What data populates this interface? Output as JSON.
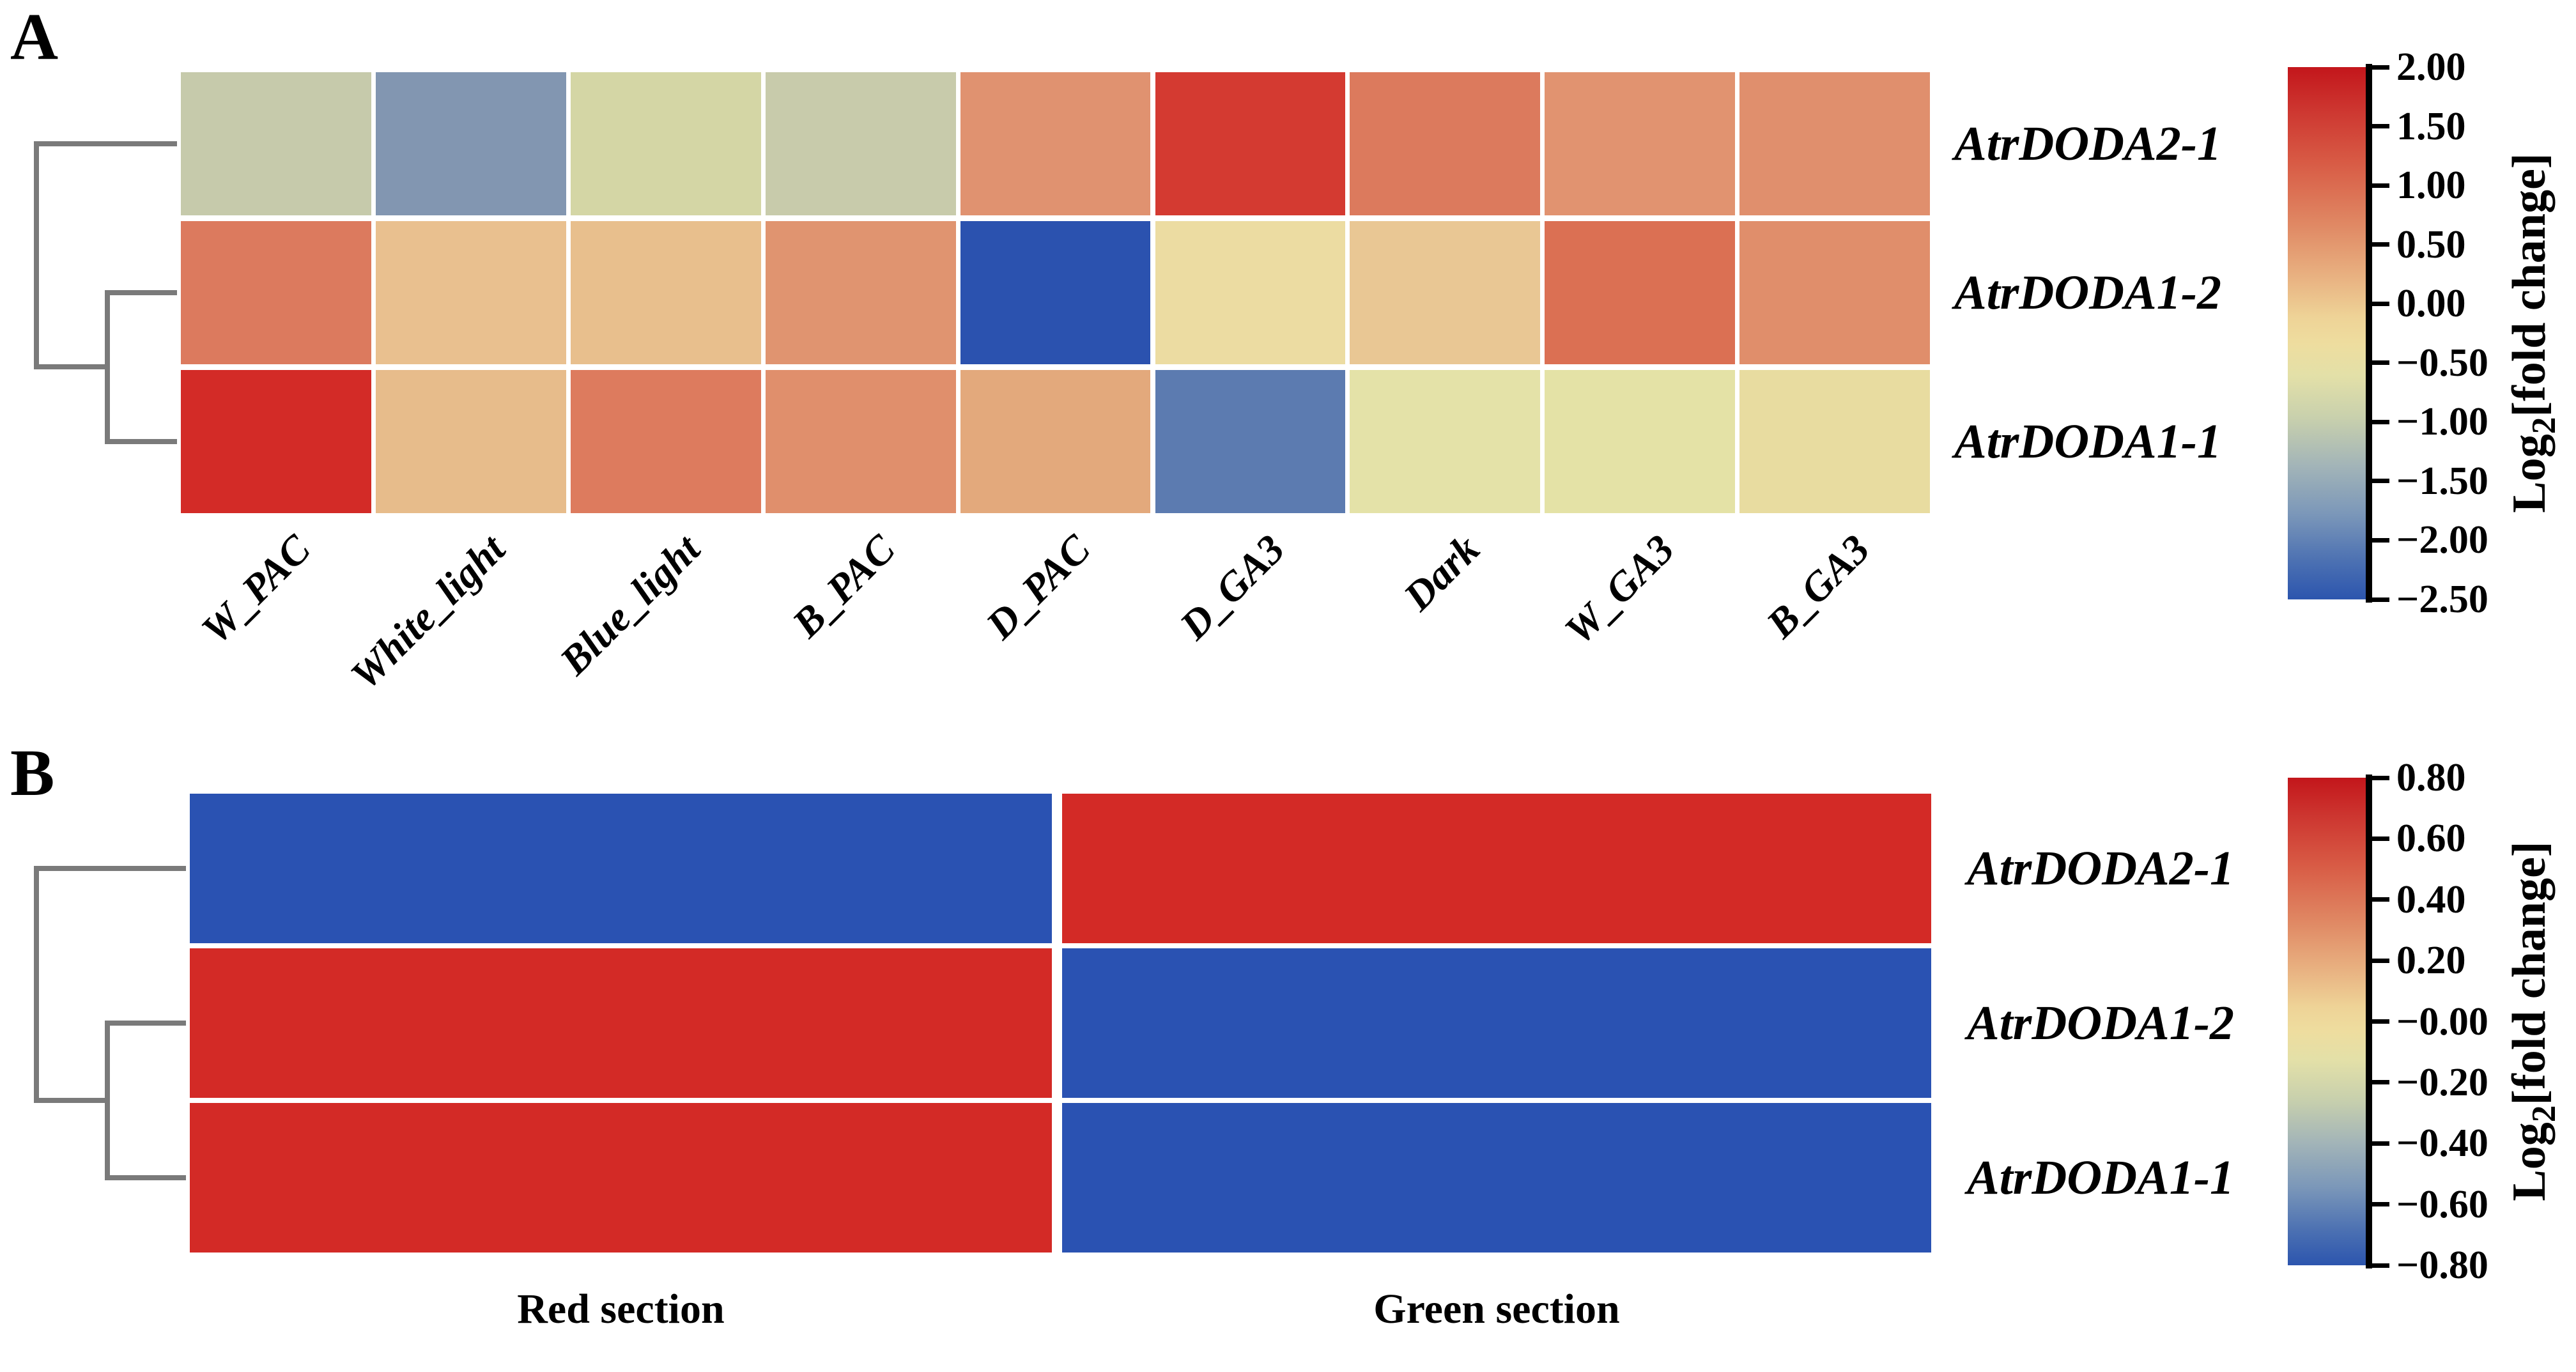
{
  "figure": {
    "background": "#ffffff",
    "dendrogram_color": "#7a7a7a",
    "cell_gap_color": "#ffffff"
  },
  "panels": [
    {
      "letter": "A",
      "row_labels": [
        "AtrDODA2-1",
        "AtrDODA1-2",
        "AtrDODA1-1"
      ],
      "col_labels": [
        "W_PAC",
        "White_light",
        "Blue_light",
        "B_PAC",
        "D_PAC",
        "D_GA3",
        "Dark",
        "W_GA3",
        "B_GA3"
      ],
      "cell_colors": [
        [
          "#c6caab",
          "#8296b1",
          "#d4d6a5",
          "#c8cbab",
          "#e09270",
          "#d43a31",
          "#dc7a5d",
          "#e19370",
          "#e08f6d"
        ],
        [
          "#dc7a5e",
          "#e9c08f",
          "#e8bf8d",
          "#e09470",
          "#2b52af",
          "#ecdca2",
          "#e9c794",
          "#db7053",
          "#e08e6b"
        ],
        [
          "#d32b27",
          "#e7bc8b",
          "#dd7b5e",
          "#e08f6c",
          "#e3a97c",
          "#5c7bb0",
          "#e4e2a8",
          "#e4e2a6",
          "#e8dca0"
        ]
      ],
      "colorbar": {
        "ticks": [
          "2.00",
          "1.50",
          "1.00",
          "0.50",
          "0.00",
          "−0.50",
          "−1.00",
          "−1.50",
          "−2.00",
          "−2.50"
        ],
        "label_log": "Log",
        "label_sub": "2",
        "label_rest": "[fold change]",
        "gradient": [
          [
            "#c3161b",
            0
          ],
          [
            "#cd3630",
            8
          ],
          [
            "#d85b45",
            18
          ],
          [
            "#e08a65",
            30
          ],
          [
            "#e9b483",
            40
          ],
          [
            "#eed397",
            47
          ],
          [
            "#eedd9f",
            52
          ],
          [
            "#e3e0a8",
            58
          ],
          [
            "#c8d0ad",
            66
          ],
          [
            "#a2b4b8",
            75
          ],
          [
            "#7b97b9",
            84
          ],
          [
            "#4b70b2",
            93
          ],
          [
            "#2c55ae",
            100
          ]
        ]
      }
    },
    {
      "letter": "B",
      "row_labels": [
        "AtrDODA2-1",
        "AtrDODA1-2",
        "AtrDODA1-1"
      ],
      "col_labels": [
        "Red section",
        "Green section"
      ],
      "cell_colors": [
        [
          "#2a52b2",
          "#d32a26"
        ],
        [
          "#d32a26",
          "#2a52b2"
        ],
        [
          "#d32a26",
          "#2a52b2"
        ]
      ],
      "colorbar": {
        "ticks": [
          "0.80",
          "0.60",
          "0.40",
          "0.20",
          "−0.00",
          "−0.20",
          "−0.40",
          "−0.60",
          "−0.80"
        ],
        "label_log": "Log",
        "label_sub": "2",
        "label_rest": "[fold change]",
        "gradient": [
          [
            "#c3161b",
            0
          ],
          [
            "#cd3630",
            8
          ],
          [
            "#d85b45",
            18
          ],
          [
            "#e08a65",
            30
          ],
          [
            "#e9b483",
            40
          ],
          [
            "#eed397",
            47
          ],
          [
            "#eedd9f",
            52
          ],
          [
            "#e3e0a8",
            58
          ],
          [
            "#c8d0ad",
            66
          ],
          [
            "#a2b4b8",
            75
          ],
          [
            "#7b97b9",
            84
          ],
          [
            "#4b70b2",
            93
          ],
          [
            "#2c55ae",
            100
          ]
        ]
      }
    }
  ],
  "chart_data": [
    {
      "type": "heatmap",
      "panel": "A",
      "title": "",
      "rows": [
        "AtrDODA2-1",
        "AtrDODA1-2",
        "AtrDODA1-1"
      ],
      "categories": [
        "W_PAC",
        "White_light",
        "Blue_light",
        "B_PAC",
        "D_PAC",
        "D_GA3",
        "Dark",
        "W_GA3",
        "B_GA3"
      ],
      "series": [
        {
          "name": "AtrDODA2-1",
          "values": [
            -1.2,
            -1.7,
            -0.8,
            -1.1,
            0.6,
            1.7,
            0.9,
            0.6,
            0.65
          ]
        },
        {
          "name": "AtrDODA1-2",
          "values": [
            0.9,
            0.2,
            0.2,
            0.6,
            -2.5,
            -0.3,
            0.05,
            1.0,
            0.65
          ]
        },
        {
          "name": "AtrDODA1-1",
          "values": [
            1.9,
            0.25,
            0.9,
            0.65,
            0.4,
            -1.9,
            -0.6,
            -0.6,
            -0.35
          ]
        }
      ],
      "colorbar_label": "Log2[fold change]",
      "colorbar_ticks": [
        2.0,
        1.5,
        1.0,
        0.5,
        0.0,
        -0.5,
        -1.0,
        -1.5,
        -2.0,
        -2.5
      ],
      "value_range": [
        -2.5,
        2.0
      ],
      "colormap": "red (high) / cream (zero) / blue (low)",
      "row_clustering": "((AtrDODA1-2,AtrDODA1-1),AtrDODA2-1) dendrogram on left",
      "legend_position": "right colorbar",
      "grid": false
    },
    {
      "type": "heatmap",
      "panel": "B",
      "title": "",
      "rows": [
        "AtrDODA2-1",
        "AtrDODA1-2",
        "AtrDODA1-1"
      ],
      "categories": [
        "Red section",
        "Green section"
      ],
      "series": [
        {
          "name": "AtrDODA2-1",
          "values": [
            -0.8,
            0.8
          ]
        },
        {
          "name": "AtrDODA1-2",
          "values": [
            0.8,
            -0.8
          ]
        },
        {
          "name": "AtrDODA1-1",
          "values": [
            0.8,
            -0.8
          ]
        }
      ],
      "colorbar_label": "Log2[fold change]",
      "colorbar_ticks": [
        0.8,
        0.6,
        0.4,
        0.2,
        -0.0,
        -0.2,
        -0.4,
        -0.6,
        -0.8
      ],
      "value_range": [
        -0.8,
        0.8
      ],
      "colormap": "red (high) / cream (zero) / blue (low)",
      "row_clustering": "((AtrDODA1-2,AtrDODA1-1),AtrDODA2-1) dendrogram on left",
      "legend_position": "right colorbar",
      "grid": false
    }
  ]
}
